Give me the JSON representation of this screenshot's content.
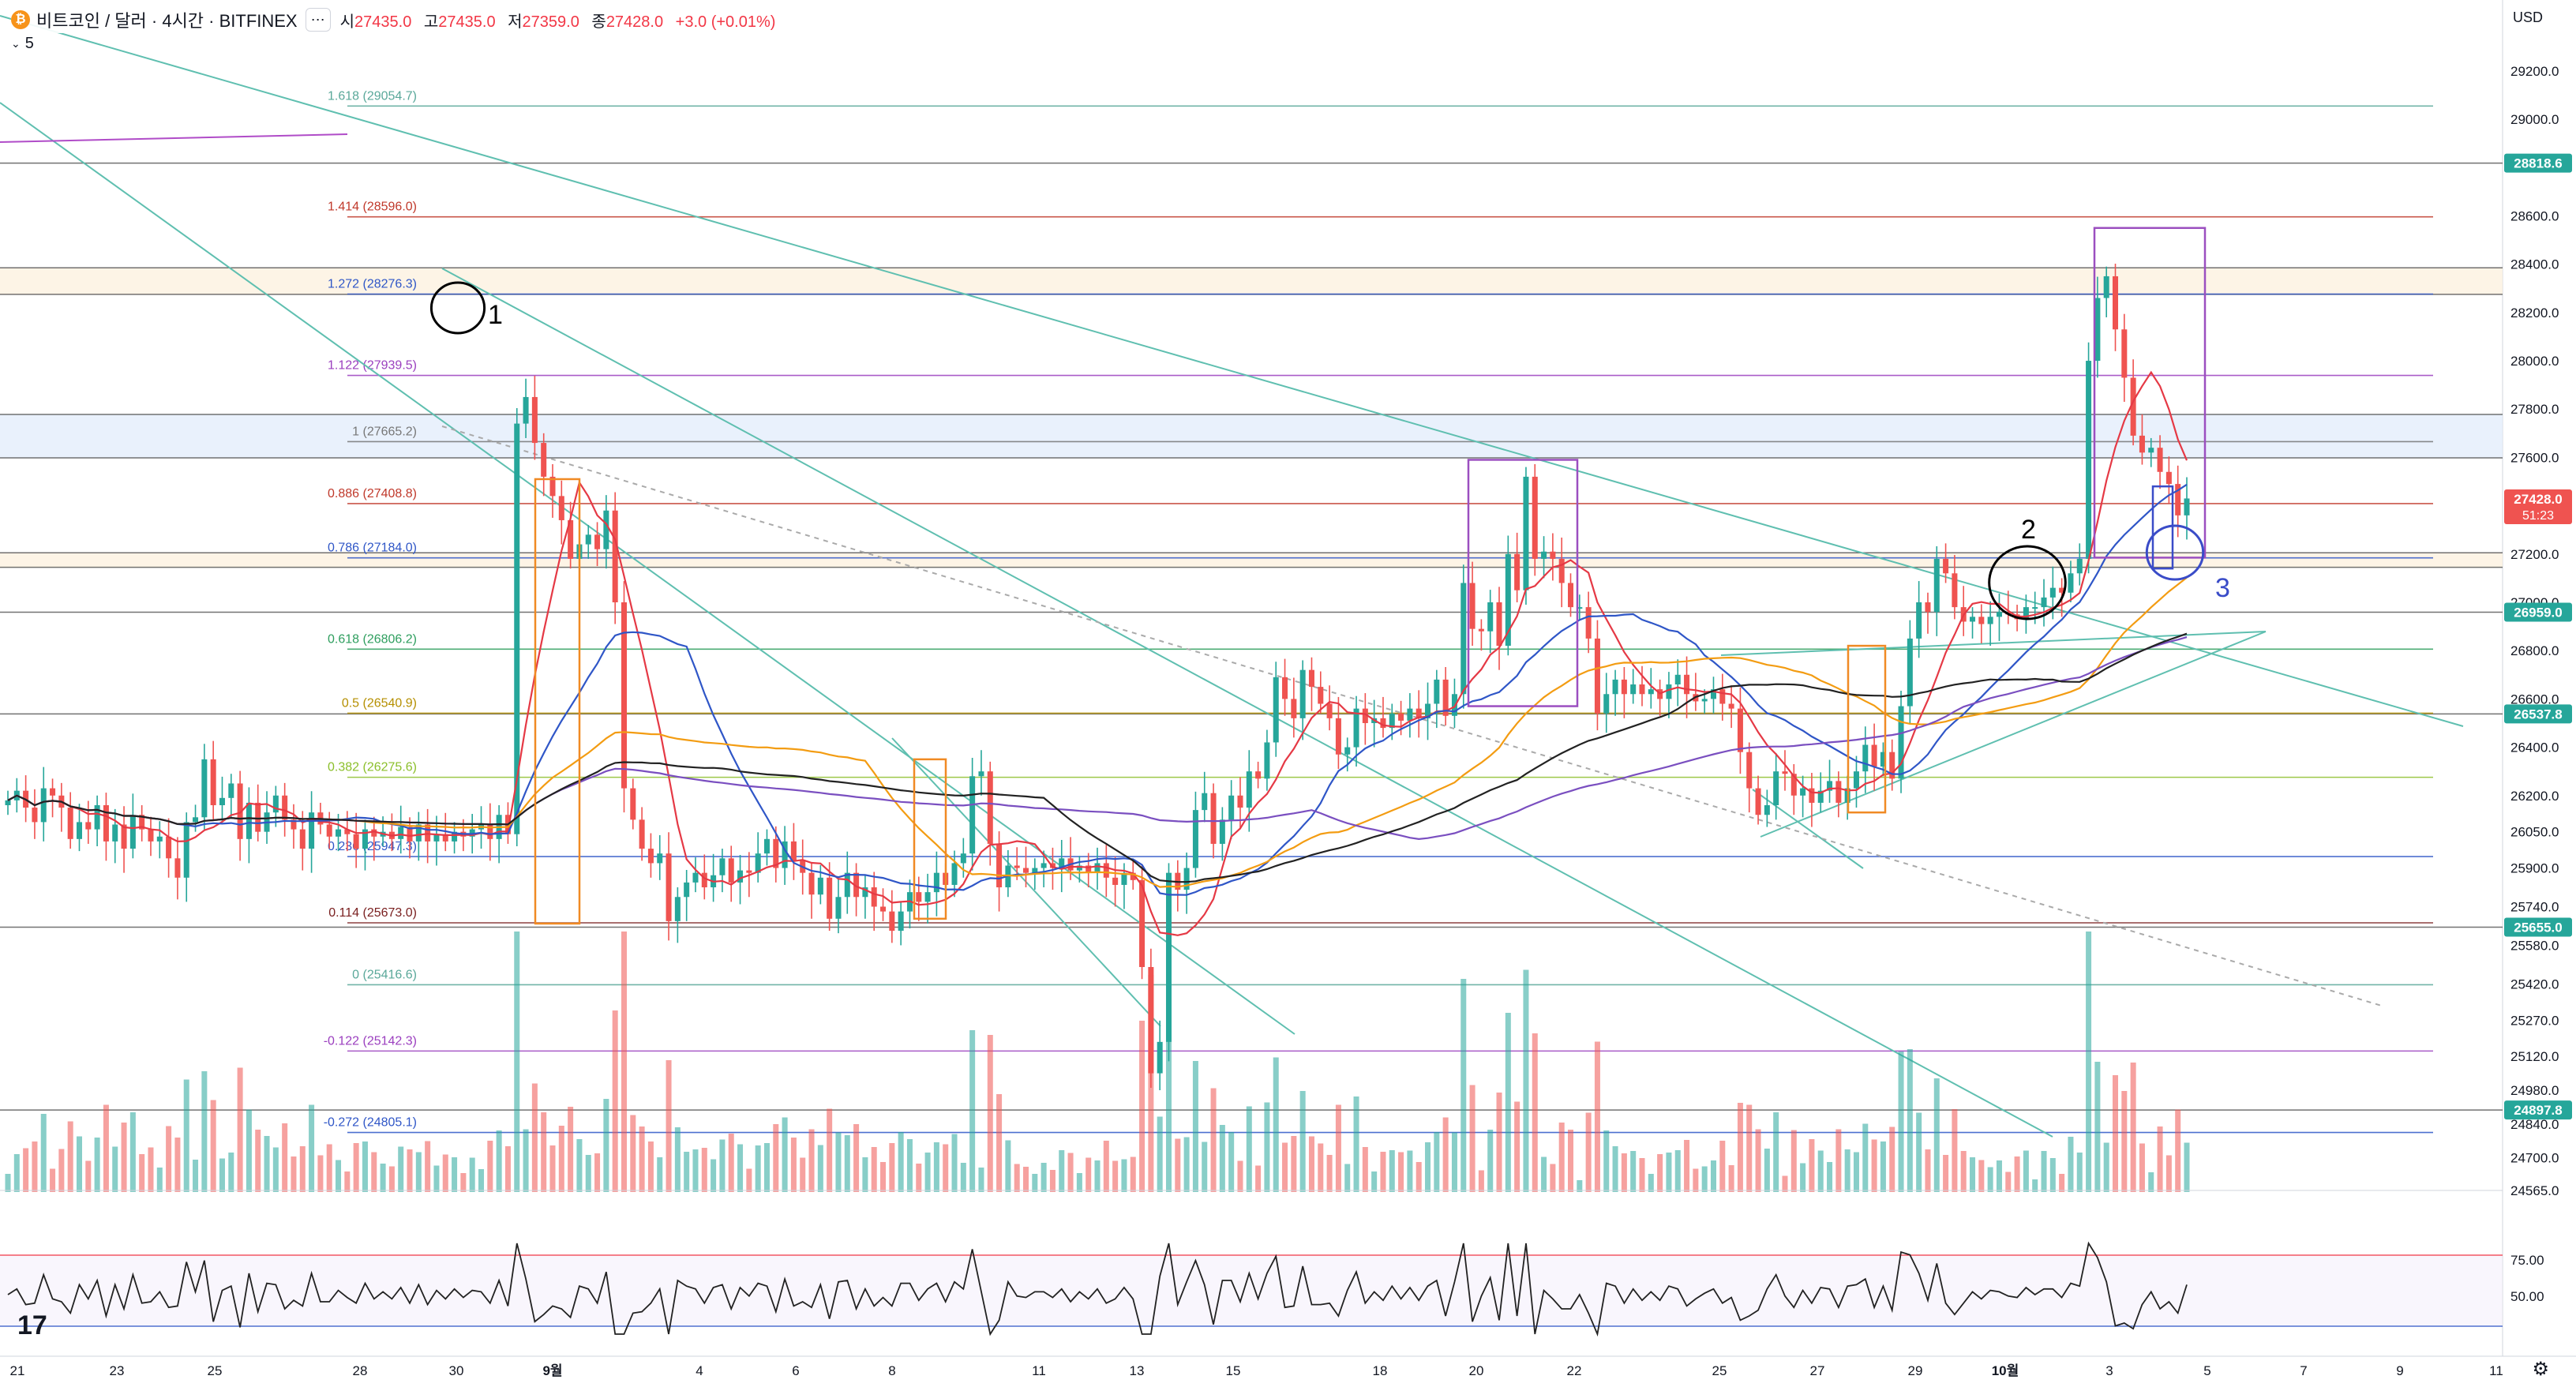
{
  "header": {
    "symbol_title": "비트코인 / 달러 · 4시간 · BITFINEX",
    "coin_icon": "bitcoin-icon",
    "ohlc": [
      {
        "label": "시",
        "value": "27435.0"
      },
      {
        "label": "고",
        "value": "27435.0"
      },
      {
        "label": "저",
        "value": "27359.0"
      },
      {
        "label": "종",
        "value": "27428.0"
      },
      {
        "label": "",
        "value": "+3.0 (+0.01%)"
      }
    ],
    "indicator_count": "5",
    "currency": "USD"
  },
  "colors": {
    "up": "#26a69a",
    "down": "#ef5350",
    "ma_red": "#e53945",
    "ma_blue": "#2f56c7",
    "ma_orange": "#f39c12",
    "ma_purple": "#7a4fc0",
    "ma_black": "#222222",
    "fib": "#5aa89a",
    "trend": "#5fbfb0"
  },
  "chart_data": {
    "type": "candlestick",
    "title": "비트코인 / 달러 · 4시간 · BITFINEX",
    "price_axis": {
      "labels": [
        "29200.0",
        "29000.0",
        "28800.0",
        "28600.0",
        "28400.0",
        "28200.0",
        "28000.0",
        "27800.0",
        "27600.0",
        "27400.0",
        "27200.0",
        "27000.0",
        "26800.0",
        "26600.0",
        "26400.0",
        "26200.0",
        "26050.0",
        "25900.0",
        "25740.0",
        "25580.0",
        "25420.0",
        "25270.0",
        "25120.0",
        "24980.0",
        "24840.0",
        "24700.0",
        "24565.0"
      ],
      "range": [
        24565,
        29350
      ]
    },
    "price_badges": [
      {
        "value": "28818.6",
        "color": "#26a69a"
      },
      {
        "value": "27428.0",
        "sub": "51:23",
        "color": "#ef5350"
      },
      {
        "value": "26959.0",
        "color": "#26a69a"
      },
      {
        "value": "26537.8",
        "color": "#26a69a"
      },
      {
        "value": "25655.0",
        "color": "#26a69a"
      },
      {
        "value": "24897.8",
        "color": "#26a69a"
      }
    ],
    "time_axis": {
      "labels": [
        "21",
        "23",
        "25",
        "28",
        "30",
        "9월",
        "4",
        "6",
        "8",
        "11",
        "13",
        "15",
        "18",
        "20",
        "22",
        "25",
        "27",
        "29",
        "10월",
        "3",
        "5",
        "7",
        "9",
        "11"
      ]
    },
    "fib_levels": [
      {
        "ratio": "1.618",
        "price": 29054.7,
        "label": "1.618 (29054.7)",
        "color": "#5aa89a"
      },
      {
        "ratio": "1.414",
        "price": 28596.0,
        "label": "1.414 (28596.0)",
        "color": "#c0392b"
      },
      {
        "ratio": "1.272",
        "price": 28276.3,
        "label": "1.272 (28276.3)",
        "color": "#2f56c7"
      },
      {
        "ratio": "1.122",
        "price": 27939.5,
        "label": "1.122 (27939.5)",
        "color": "#9b3fbf"
      },
      {
        "ratio": "1",
        "price": 27665.2,
        "label": "1 (27665.2)",
        "color": "#777777"
      },
      {
        "ratio": "0.886",
        "price": 27408.8,
        "label": "0.886 (27408.8)",
        "color": "#c0392b"
      },
      {
        "ratio": "0.786",
        "price": 27184.0,
        "label": "0.786 (27184.0)",
        "color": "#2f56c7"
      },
      {
        "ratio": "0.618",
        "price": 26806.2,
        "label": "0.618 (26806.2)",
        "color": "#2e9e5e"
      },
      {
        "ratio": "0.5",
        "price": 26540.9,
        "label": "0.5 (26540.9)",
        "color": "#b58f00"
      },
      {
        "ratio": "0.382",
        "price": 26275.6,
        "label": "0.382 (26275.6)",
        "color": "#8bbf2a"
      },
      {
        "ratio": "0.236",
        "price": 25947.3,
        "label": "0.236 (25947.3)",
        "color": "#2f56c7"
      },
      {
        "ratio": "0.114",
        "price": 25673.0,
        "label": "0.114 (25673.0)",
        "color": "#7a2020"
      },
      {
        "ratio": "0",
        "price": 25416.6,
        "label": "0 (25416.6)",
        "color": "#5aa89a"
      },
      {
        "ratio": "-0.122",
        "price": 25142.3,
        "label": "-0.122 (25142.3)",
        "color": "#9b3fbf"
      },
      {
        "ratio": "-0.272",
        "price": 24805.1,
        "label": "-0.272 (24805.1)",
        "color": "#2f56c7"
      }
    ],
    "horizontal_lines": [
      28818.6,
      28385,
      28275,
      27778,
      27598,
      27205,
      27145,
      26959,
      26537.8,
      25655,
      24897.8
    ],
    "highlight_bands": [
      [
        27598,
        27778
      ],
      [
        28275,
        28385
      ],
      [
        27145,
        27205
      ]
    ],
    "candles_close": [
      26180,
      26220,
      26150,
      26090,
      26230,
      26200,
      26150,
      26020,
      26090,
      26060,
      26160,
      26010,
      26080,
      25980,
      26120,
      26060,
      26010,
      26030,
      25940,
      25860,
      26090,
      26110,
      26350,
      26160,
      26190,
      26250,
      26020,
      26170,
      26050,
      26130,
      26200,
      26100,
      26060,
      25980,
      26130,
      26080,
      26030,
      26060,
      26040,
      25980,
      26060,
      26030,
      26050,
      26020,
      26070,
      26010,
      26080,
      26010,
      26040,
      26010,
      26050,
      26030,
      26060,
      26080,
      26020,
      26120,
      26040,
      27740,
      27850,
      27660,
      27520,
      27440,
      27340,
      27180,
      27240,
      27280,
      27220,
      27380,
      27000,
      26230,
      26100,
      25980,
      25920,
      25960,
      25680,
      25780,
      25840,
      25880,
      25820,
      25870,
      25940,
      25840,
      25890,
      25880,
      25960,
      26020,
      25900,
      26010,
      25930,
      25880,
      25790,
      25860,
      25690,
      25780,
      25880,
      25780,
      25820,
      25740,
      25720,
      25640,
      25720,
      25800,
      25760,
      25800,
      25880,
      25830,
      25920,
      25960,
      26280,
      26300,
      26000,
      25820,
      25910,
      25900,
      25880,
      25900,
      25920,
      25900,
      25940,
      25890,
      25910,
      25880,
      25920,
      25860,
      25830,
      25880,
      25850,
      25490,
      25050,
      25180,
      25880,
      25810,
      25900,
      26140,
      26210,
      26000,
      26100,
      26200,
      26150,
      26300,
      26270,
      26420,
      26690,
      26600,
      26520,
      26720,
      26650,
      26580,
      26520,
      26370,
      26400,
      26560,
      26500,
      26520,
      26480,
      26540,
      26510,
      26560,
      26520,
      26580,
      26680,
      26530,
      26620,
      27080,
      26890,
      26880,
      27000,
      26820,
      27200,
      27050,
      27520,
      27180,
      27210,
      27180,
      27080,
      26980,
      26980,
      26850,
      26540,
      26620,
      26680,
      26620,
      26660,
      26620,
      26640,
      26600,
      26660,
      26700,
      26620,
      26590,
      26600,
      26640,
      26580,
      26560,
      26380,
      26230,
      26120,
      26160,
      26300,
      26290,
      26200,
      26230,
      26170,
      26220,
      26260,
      26170,
      26230,
      26300,
      26410,
      26320,
      26380,
      26270,
      26570,
      26850,
      27000,
      26960,
      27180,
      27120,
      26980,
      26920,
      26940,
      26910,
      26940,
      26960,
      26950,
      26930,
      26980,
      26980,
      27020,
      27060,
      27040,
      27120,
      27180,
      28000,
      28260,
      28350,
      28130,
      27930,
      27690,
      27620,
      27640,
      27540,
      27490,
      27360,
      27430
    ],
    "rsi": {
      "labels": [
        "75.00",
        "50.00"
      ],
      "upper": 70,
      "lower": 30
    },
    "annotations": [
      {
        "text": "1",
        "color": "#000000"
      },
      {
        "text": "2",
        "color": "#000000"
      },
      {
        "text": "3",
        "color": "#3a4cc8"
      }
    ]
  }
}
